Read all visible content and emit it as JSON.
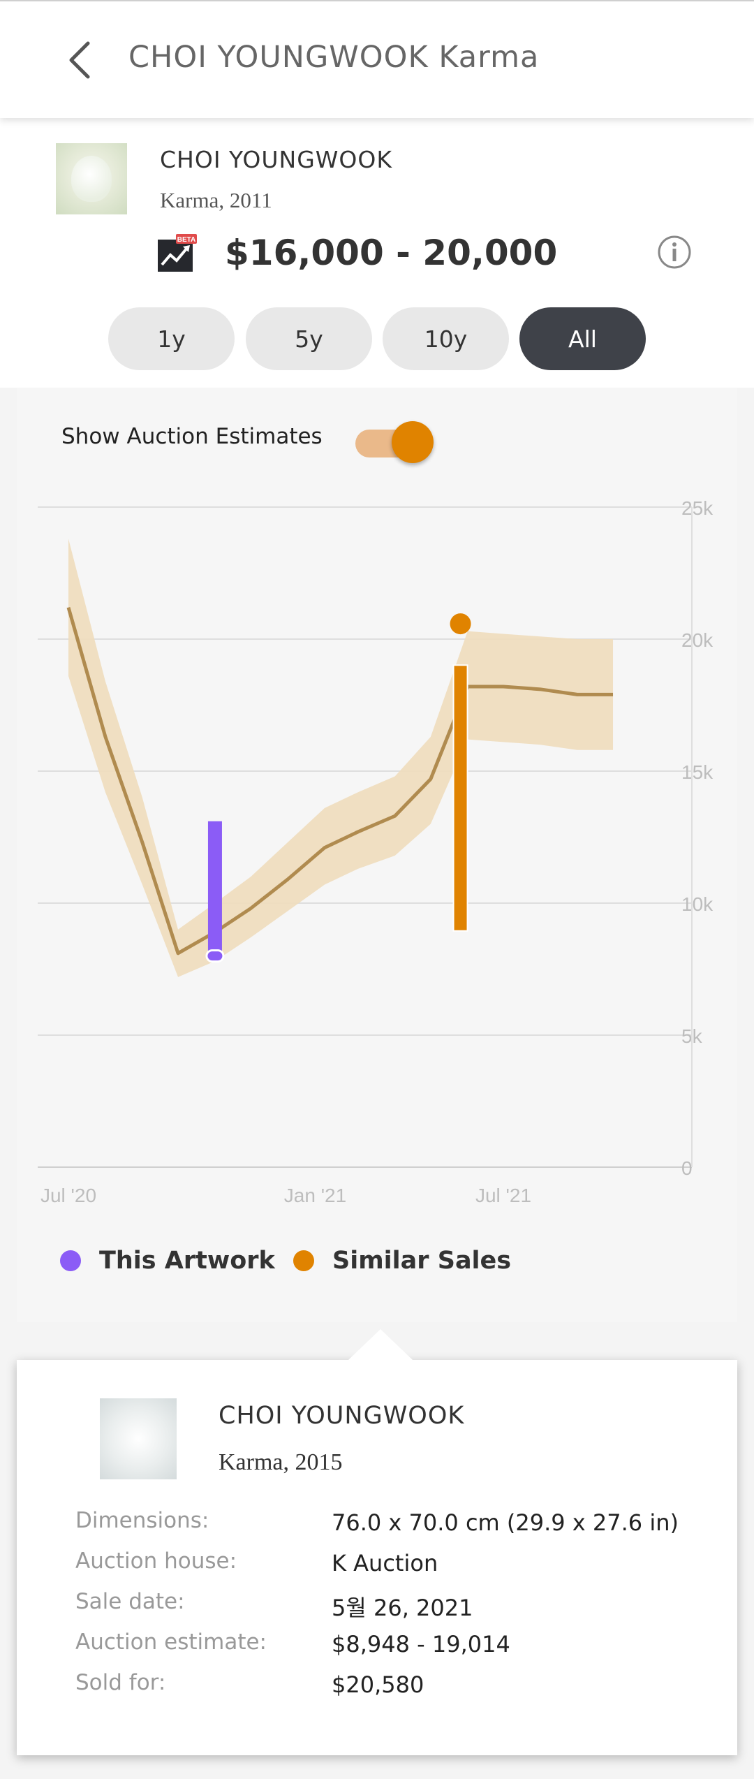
{
  "header": {
    "title": "CHOI YOUNGWOOK Karma"
  },
  "artwork": {
    "artist": "CHOI YOUNGWOOK",
    "subtitle": "Karma, 2011",
    "badge": "BETA",
    "price_range": "$16,000 - 20,000"
  },
  "range_tabs": [
    {
      "label": "1y",
      "active": false
    },
    {
      "label": "5y",
      "active": false
    },
    {
      "label": "10y",
      "active": false
    },
    {
      "label": "All",
      "active": true
    }
  ],
  "toggle": {
    "label": "Show Auction Estimates",
    "on": true
  },
  "colors": {
    "this_artwork": "#8b5cf6",
    "similar_sales": "#e08300",
    "trend_line": "#b08b4f",
    "band": "#f0ddbd",
    "active_tab": "#3f4249"
  },
  "chart_data": {
    "type": "line",
    "x_ticks": [
      "Jul '20",
      "Jan '21",
      "Jul '21"
    ],
    "y_ticks": [
      "0",
      "5k",
      "10k",
      "15k",
      "20k",
      "25k"
    ],
    "ylim": [
      0,
      25000
    ],
    "trend": {
      "x": [
        "2020-07-01",
        "2020-08-01",
        "2020-09-01",
        "2020-10-01",
        "2020-11-01",
        "2020-12-01",
        "2021-01-01",
        "2021-02-01",
        "2021-03-01",
        "2021-04-01",
        "2021-05-01",
        "2021-06-01",
        "2021-07-01",
        "2021-08-01",
        "2021-09-01",
        "2021-10-01"
      ],
      "y": [
        21200,
        16300,
        12300,
        8100,
        8900,
        9800,
        10900,
        12100,
        12700,
        13300,
        14700,
        18200,
        18200,
        18100,
        17900,
        17900
      ],
      "band_low": [
        18600,
        14200,
        10700,
        7200,
        7800,
        8700,
        9700,
        10700,
        11300,
        11800,
        13000,
        16200,
        16100,
        16000,
        15800,
        15800
      ],
      "band_high": [
        23800,
        18400,
        14000,
        9000,
        10000,
        11000,
        12300,
        13600,
        14200,
        14800,
        16300,
        20300,
        20200,
        20100,
        20000,
        20000
      ]
    },
    "this_artwork": {
      "x": "2020-11-01",
      "estimate_low": 8000,
      "estimate_high": 13100,
      "sold": 8000
    },
    "similar_sales": [
      {
        "x": "2021-05-26",
        "estimate_low": 8948,
        "estimate_high": 19014,
        "sold": 20580
      }
    ],
    "legend": [
      "This Artwork",
      "Similar Sales"
    ]
  },
  "detail": {
    "artist": "CHOI YOUNGWOOK",
    "subtitle": "Karma, 2015",
    "rows": [
      {
        "label": "Dimensions:",
        "value": "76.0 x 70.0 cm (29.9 x 27.6 in)"
      },
      {
        "label": "Auction house:",
        "value": "K Auction"
      },
      {
        "label": "Sale date:",
        "value": "5월 26, 2021"
      },
      {
        "label": "Auction estimate:",
        "value": "$8,948 - 19,014"
      },
      {
        "label": "Sold for:",
        "value": "$20,580"
      }
    ]
  }
}
